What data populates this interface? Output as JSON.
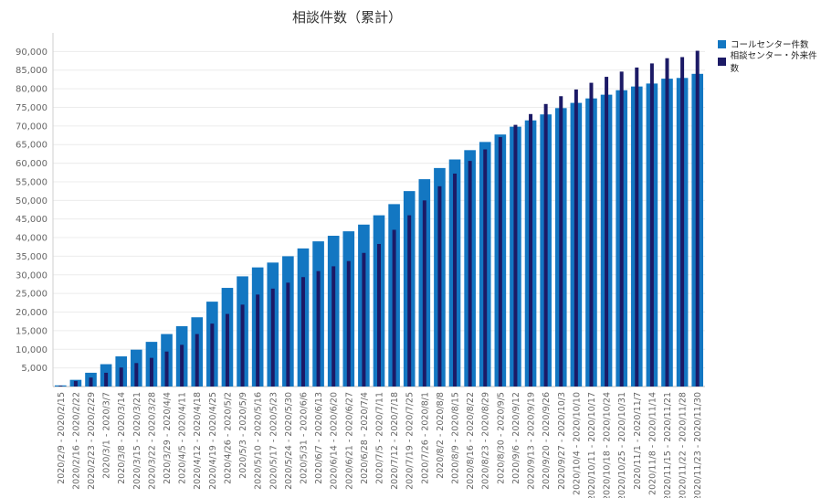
{
  "chart_data": {
    "type": "bar",
    "title": "相談件数（累計）",
    "xlabel": "",
    "ylabel": "",
    "ylim": [
      0,
      95000
    ],
    "yticks": [
      5000,
      10000,
      15000,
      20000,
      25000,
      30000,
      35000,
      40000,
      45000,
      50000,
      55000,
      60000,
      65000,
      70000,
      75000,
      80000,
      85000,
      90000
    ],
    "ytick_labels": [
      "5,000",
      "10,000",
      "15,000",
      "20,000",
      "25,000",
      "30,000",
      "35,000",
      "40,000",
      "45,000",
      "50,000",
      "55,000",
      "60,000",
      "65,000",
      "70,000",
      "75,000",
      "80,000",
      "85,000",
      "90,000"
    ],
    "grid": true,
    "legend_position": "top-right",
    "categories": [
      "2020/2/9 - 2020/2/15",
      "2020/2/16 - 2020/2/22",
      "2020/2/23 - 2020/2/29",
      "2020/3/1 - 2020/3/7",
      "2020/3/8 - 2020/3/14",
      "2020/3/15 - 2020/3/21",
      "2020/3/22 - 2020/3/28",
      "2020/3/29 - 2020/4/4",
      "2020/4/5 - 2020/4/11",
      "2020/4/12 - 2020/4/18",
      "2020/4/19 - 2020/4/25",
      "2020/4/26 - 2020/5/2",
      "2020/5/3 - 2020/5/9",
      "2020/5/10 - 2020/5/16",
      "2020/5/17 - 2020/5/23",
      "2020/5/24 - 2020/5/30",
      "2020/5/31 - 2020/6/6",
      "2020/6/7 - 2020/6/13",
      "2020/6/14 - 2020/6/20",
      "2020/6/21 - 2020/6/27",
      "2020/6/28 - 2020/7/4",
      "2020/7/5 - 2020/7/11",
      "2020/7/12 - 2020/7/18",
      "2020/7/19 - 2020/7/25",
      "2020/7/26 - 2020/8/1",
      "2020/8/2 - 2020/8/8",
      "2020/8/9 - 2020/8/15",
      "2020/8/16 - 2020/8/22",
      "2020/8/23 - 2020/8/29",
      "2020/8/30 - 2020/9/5",
      "2020/9/6 - 2020/9/12",
      "2020/9/13 - 2020/9/19",
      "2020/9/20 - 2020/9/26",
      "2020/9/27 - 2020/10/3",
      "2020/10/4 - 2020/10/10",
      "2020/10/11 - 2020/10/17",
      "2020/10/18 - 2020/10/24",
      "2020/10/25 - 2020/10/31",
      "2020/11/1 - 2020/11/7",
      "2020/11/8 - 2020/11/14",
      "2020/11/15 - 2020/11/21",
      "2020/11/22 - 2020/11/28",
      "2020/11/23 - 2020/11/30"
    ],
    "series": [
      {
        "name": "コールセンター件数",
        "color": "#1377c2",
        "values": [
          300,
          1800,
          3700,
          6000,
          8100,
          9900,
          12000,
          14100,
          16200,
          18600,
          22800,
          26500,
          29600,
          32000,
          33300,
          35000,
          37100,
          39000,
          40500,
          41700,
          43500,
          46000,
          49000,
          52500,
          55700,
          58700,
          61000,
          63500,
          65700,
          67700,
          69800,
          71500,
          73100,
          74800,
          76200,
          77400,
          78400,
          79600,
          80600,
          81400,
          82700,
          82900,
          84000
        ]
      },
      {
        "name": "相談センター・外来件数",
        "color": "#1c1a66",
        "values": [
          200,
          1500,
          2400,
          3700,
          5100,
          6300,
          7700,
          9400,
          11200,
          14100,
          16900,
          19500,
          22000,
          24700,
          26300,
          27900,
          29400,
          31000,
          32300,
          33700,
          35900,
          38300,
          42100,
          46000,
          50000,
          53800,
          57200,
          60600,
          63700,
          67000,
          70300,
          73200,
          75900,
          78000,
          79800,
          81600,
          83200,
          84600,
          85700,
          86800,
          88200,
          88500,
          90200
        ]
      }
    ]
  }
}
